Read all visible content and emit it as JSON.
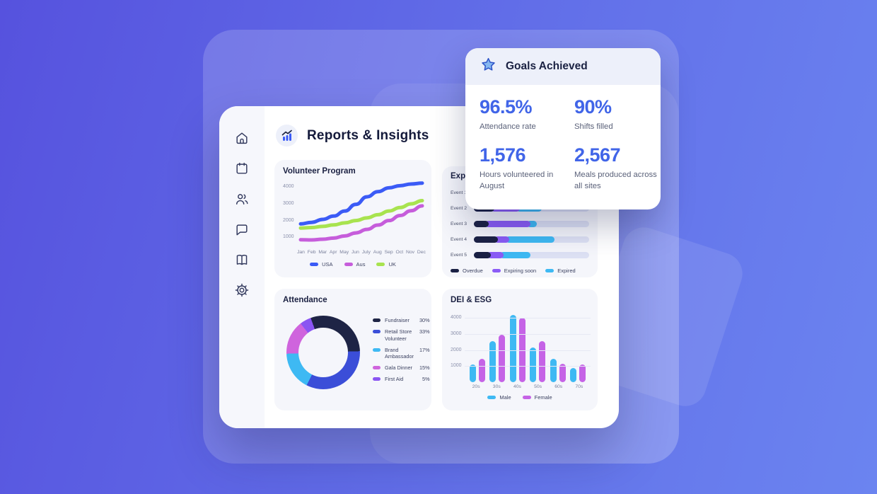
{
  "background": {
    "gradient": [
      "#5652de",
      "#6b84f0"
    ]
  },
  "goals_card": {
    "icon": "star-icon",
    "title": "Goals Achieved",
    "accent_color": "#4165e8",
    "stats": [
      {
        "value": "96.5%",
        "label": "Attendance rate"
      },
      {
        "value": "90%",
        "label": "Shifts filled"
      },
      {
        "value": "1,576",
        "label": "Hours volunteered in August"
      },
      {
        "value": "2,567",
        "label": "Meals produced across all sites"
      }
    ]
  },
  "dashboard": {
    "title": "Reports & Insights",
    "header_icon": "bar-chart-icon",
    "sidebar": {
      "items": [
        {
          "icon": "home-icon"
        },
        {
          "icon": "calendar-icon"
        },
        {
          "icon": "users-icon"
        },
        {
          "icon": "chat-icon"
        },
        {
          "icon": "book-icon"
        },
        {
          "icon": "settings-icon"
        }
      ]
    }
  },
  "chart_data": [
    {
      "id": "volunteer_program",
      "type": "line",
      "title": "Volunteer Program",
      "x": [
        "Jan",
        "Feb",
        "Mar",
        "Apr",
        "May",
        "Jun",
        "July",
        "Aug",
        "Sep",
        "Oct",
        "Nov",
        "Dec"
      ],
      "series": [
        {
          "name": "USA",
          "color": "#3b5bf6",
          "values": [
            1800,
            1890,
            2070,
            2270,
            2570,
            2970,
            3420,
            3730,
            3960,
            4090,
            4190,
            4240
          ]
        },
        {
          "name": "Aus",
          "color": "#c65ddb",
          "values": [
            850,
            840,
            880,
            950,
            1080,
            1260,
            1470,
            1730,
            2000,
            2300,
            2590,
            2880
          ]
        },
        {
          "name": "UK",
          "color": "#a8e34f",
          "values": [
            1550,
            1580,
            1650,
            1740,
            1860,
            2000,
            2160,
            2350,
            2570,
            2780,
            3000,
            3190
          ]
        }
      ],
      "yticks": [
        1000,
        2000,
        3000,
        4000
      ],
      "ylim": [
        500,
        4400
      ],
      "grid": false,
      "legend_position": "bottom"
    },
    {
      "id": "expirations",
      "type": "bar",
      "orientation": "horizontal-stacked",
      "title": "Exp",
      "categories": [
        "Event 1",
        "Event 2",
        "Event 3",
        "Event 4",
        "Event 5"
      ],
      "series": [
        {
          "name": "Overdue",
          "color": "#1b2144",
          "values": [
            14,
            18,
            13,
            21,
            15
          ]
        },
        {
          "name": "Expiring soon",
          "color": "#8b5cf6",
          "values": [
            20,
            25,
            39,
            13,
            14
          ]
        },
        {
          "name": "Expired",
          "color": "#3eb9f3",
          "values": [
            18,
            22,
            9,
            42,
            26
          ]
        }
      ],
      "value_unit": "percent_of_track",
      "track_color": "#dde1f4",
      "legend_position": "bottom"
    },
    {
      "id": "attendance",
      "type": "pie",
      "donut": true,
      "title": "Attendance",
      "slices": [
        {
          "label": "Fundraiser",
          "value": 30,
          "color": "#1e2445"
        },
        {
          "label": "Retail Store Volunteer",
          "value": 33,
          "color": "#3b4ed8"
        },
        {
          "label": "Brand Ambassador",
          "value": 17,
          "color": "#3eb9f3"
        },
        {
          "label": "Gala Dinner",
          "value": 15,
          "color": "#cf64dd"
        },
        {
          "label": "First Aid",
          "value": 5,
          "color": "#8a55f2"
        }
      ],
      "value_suffix": "%",
      "legend_position": "right"
    },
    {
      "id": "dei_esg",
      "type": "bar",
      "title": "DEI & ESG",
      "categories": [
        "20s",
        "30s",
        "40s",
        "50s",
        "60s",
        "70s"
      ],
      "series": [
        {
          "name": "Male",
          "color": "#3eb9f3",
          "values": [
            1100,
            2550,
            4200,
            2150,
            1450,
            900
          ]
        },
        {
          "name": "Female",
          "color": "#c563e6",
          "values": [
            1450,
            2950,
            4000,
            2550,
            1150,
            1100
          ]
        }
      ],
      "yticks": [
        1000,
        2000,
        3000,
        4000
      ],
      "ylim": [
        0,
        4400
      ],
      "grid": true,
      "legend_position": "bottom"
    }
  ]
}
